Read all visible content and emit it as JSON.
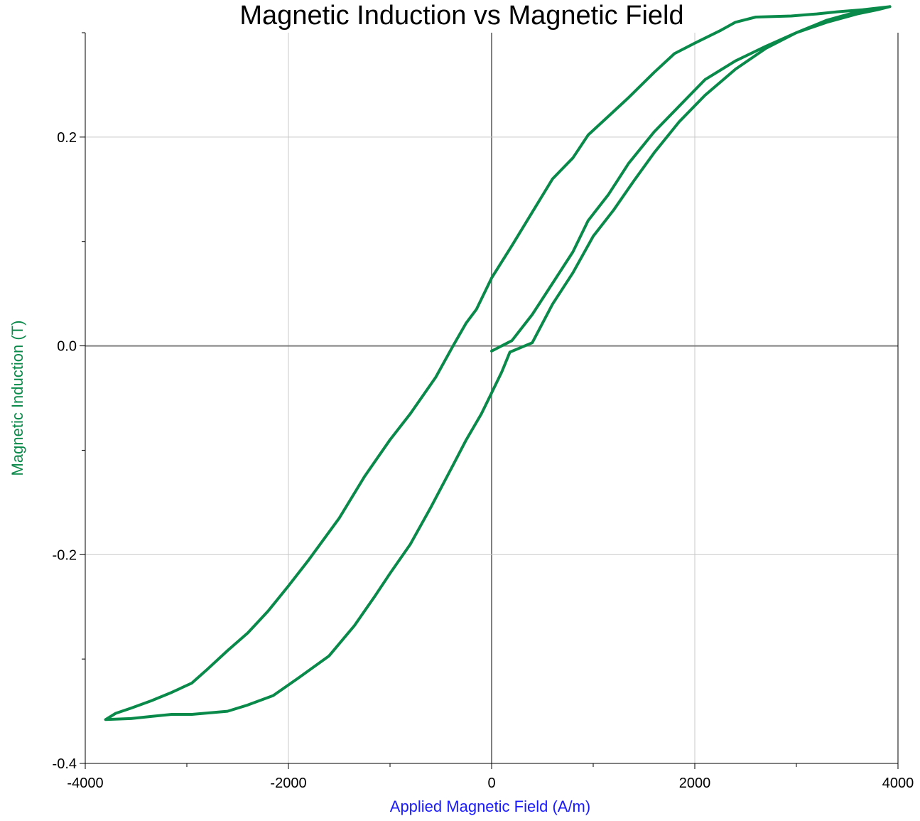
{
  "chart_data": {
    "type": "line",
    "title": "Magnetic Induction vs Magnetic Field",
    "xlabel": "Applied Magnetic Field (A/m)",
    "ylabel": "Magnetic Induction (T)",
    "xlim": [
      -4000,
      4000
    ],
    "ylim": [
      -0.4,
      0.3
    ],
    "x_ticks": [
      -4000,
      -2000,
      0,
      2000,
      4000
    ],
    "x_tick_labels": [
      "-4000",
      "-2000",
      "0",
      "2000",
      "4000"
    ],
    "y_ticks": [
      -0.4,
      -0.2,
      0.0,
      0.2
    ],
    "y_tick_labels": [
      "-0.4",
      "-0.2",
      "0.0",
      "0.2"
    ],
    "grid": true,
    "colors": {
      "series": "#0a8a4a",
      "xlabel": "#1a1aff",
      "ylabel": "#0a8a4a",
      "grid": "#c8c8c8",
      "zero_axis": "#808080"
    },
    "series": [
      {
        "points": [
          [
            0,
            -0.005
          ],
          [
            200,
            0.005
          ],
          [
            400,
            0.03
          ],
          [
            600,
            0.06
          ],
          [
            800,
            0.09
          ],
          [
            950,
            0.12
          ],
          [
            1150,
            0.145
          ],
          [
            1350,
            0.175
          ],
          [
            1600,
            0.205
          ],
          [
            1850,
            0.23
          ],
          [
            2100,
            0.255
          ],
          [
            2400,
            0.273
          ],
          [
            2700,
            0.287
          ],
          [
            3000,
            0.3
          ],
          [
            3300,
            0.31
          ],
          [
            3600,
            0.318
          ],
          [
            3800,
            0.322
          ],
          [
            3920,
            0.325
          ],
          [
            3650,
            0.322
          ],
          [
            3400,
            0.32
          ],
          [
            3200,
            0.318
          ],
          [
            2950,
            0.316
          ],
          [
            2600,
            0.315
          ],
          [
            2400,
            0.31
          ],
          [
            2250,
            0.302
          ],
          [
            2000,
            0.29
          ],
          [
            1800,
            0.28
          ],
          [
            1600,
            0.262
          ],
          [
            1350,
            0.238
          ],
          [
            1150,
            0.22
          ],
          [
            950,
            0.202
          ],
          [
            800,
            0.18
          ],
          [
            600,
            0.16
          ],
          [
            400,
            0.128
          ],
          [
            200,
            0.096
          ],
          [
            0,
            0.065
          ],
          [
            -150,
            0.035
          ],
          [
            -250,
            0.022
          ],
          [
            -380,
            0.0
          ],
          [
            -550,
            -0.03
          ],
          [
            -800,
            -0.065
          ],
          [
            -1000,
            -0.09
          ],
          [
            -1250,
            -0.125
          ],
          [
            -1500,
            -0.165
          ],
          [
            -1800,
            -0.205
          ],
          [
            -2000,
            -0.23
          ],
          [
            -2200,
            -0.254
          ],
          [
            -2400,
            -0.275
          ],
          [
            -2600,
            -0.292
          ],
          [
            -2800,
            -0.31
          ],
          [
            -2950,
            -0.323
          ],
          [
            -3150,
            -0.332
          ],
          [
            -3350,
            -0.34
          ],
          [
            -3550,
            -0.347
          ],
          [
            -3700,
            -0.352
          ],
          [
            -3800,
            -0.358
          ],
          [
            -3550,
            -0.357
          ],
          [
            -3350,
            -0.355
          ],
          [
            -3150,
            -0.353
          ],
          [
            -2950,
            -0.353
          ],
          [
            -2600,
            -0.35
          ],
          [
            -2400,
            -0.344
          ],
          [
            -2150,
            -0.335
          ],
          [
            -1900,
            -0.318
          ],
          [
            -1600,
            -0.297
          ],
          [
            -1350,
            -0.268
          ],
          [
            -1150,
            -0.24
          ],
          [
            -1000,
            -0.218
          ],
          [
            -800,
            -0.19
          ],
          [
            -600,
            -0.155
          ],
          [
            -400,
            -0.118
          ],
          [
            -250,
            -0.09
          ],
          [
            -100,
            -0.065
          ],
          [
            0,
            -0.045
          ],
          [
            100,
            -0.025
          ],
          [
            180,
            -0.006
          ],
          [
            400,
            0.003
          ],
          [
            600,
            0.04
          ],
          [
            800,
            0.07
          ],
          [
            1000,
            0.105
          ],
          [
            1200,
            0.13
          ],
          [
            1400,
            0.158
          ],
          [
            1600,
            0.185
          ],
          [
            1850,
            0.215
          ],
          [
            2100,
            0.24
          ],
          [
            2400,
            0.265
          ],
          [
            2700,
            0.285
          ],
          [
            3000,
            0.3
          ],
          [
            3300,
            0.312
          ],
          [
            3600,
            0.32
          ],
          [
            3920,
            0.325
          ]
        ]
      }
    ]
  }
}
